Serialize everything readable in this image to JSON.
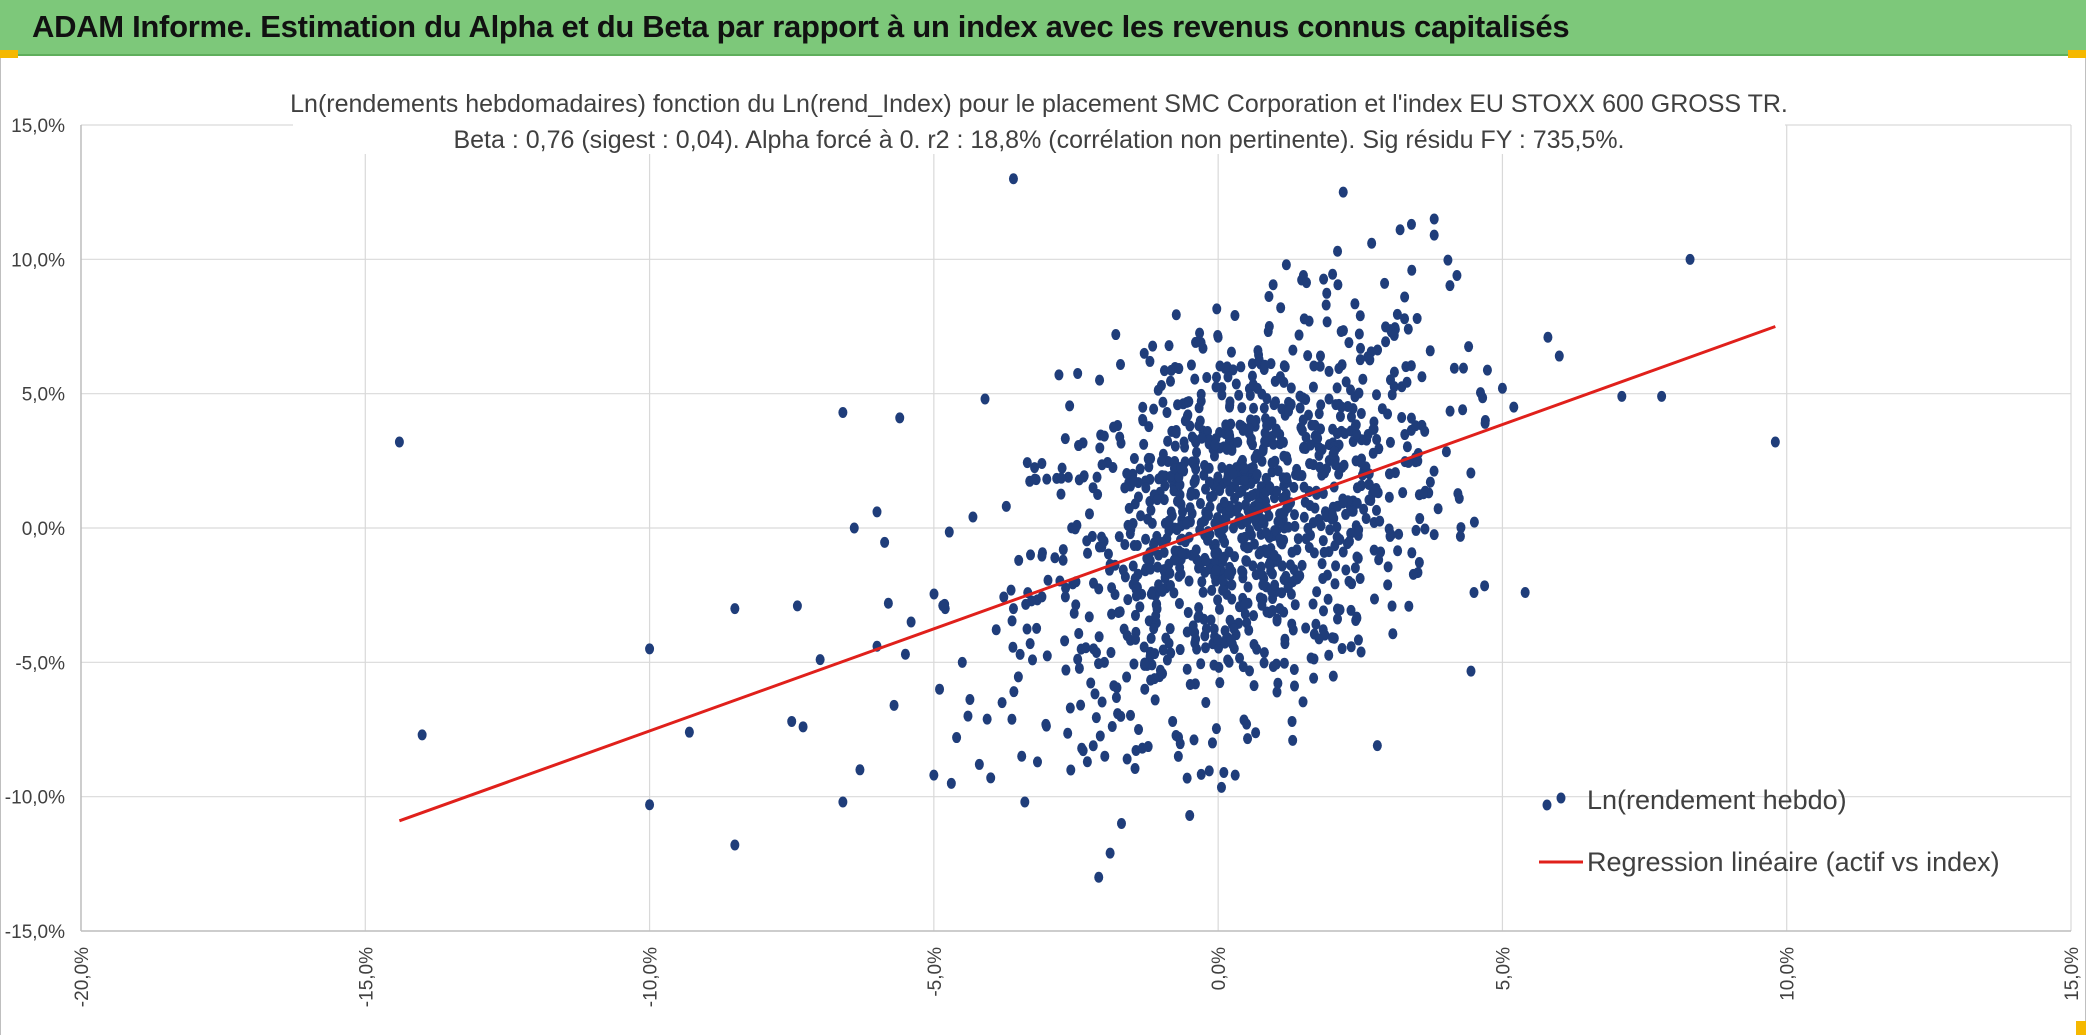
{
  "header": {
    "title": "ADAM Informe. Estimation du Alpha et du Beta par rapport à un index avec les revenus connus capitalisés"
  },
  "colors": {
    "banner": "#7dc87a",
    "points": "#1f3d7a",
    "regression": "#e0201b",
    "grid": "#d9d9d9",
    "accent_corner": "#f5b800"
  },
  "chart_data": {
    "type": "scatter",
    "title_line1": "Ln(rendements hebdomadaires) fonction du Ln(rend_Index) pour le placement SMC Corporation et l'index EU STOXX 600 GROSS TR.",
    "title_line2": "Beta : 0,76 (sigest : 0,04). Alpha forcé à 0. r2 : 18,8% (corrélation non pertinente). Sig résidu FY : 735,5%.",
    "xlim": [
      -0.2,
      0.15
    ],
    "ylim": [
      -0.15,
      0.15
    ],
    "x_ticks": [
      -0.2,
      -0.15,
      -0.1,
      -0.05,
      0.0,
      0.05,
      0.1,
      0.15
    ],
    "x_tick_labels": [
      "-20,0%",
      "-15,0%",
      "-10,0%",
      "-5,0%",
      "0,0%",
      "5,0%",
      "10,0%",
      "15,0%"
    ],
    "y_ticks": [
      0.15,
      0.1,
      0.05,
      0.0,
      -0.05,
      -0.1,
      -0.15
    ],
    "y_tick_labels": [
      "15,0%",
      "10,0%",
      "5,0%",
      "0,0%",
      "-5,0%",
      "-10,0%",
      "-15,0%"
    ],
    "grid": true,
    "legend_position": "bottom-right",
    "series": [
      {
        "name": "Ln(rendement hebdo)",
        "kind": "scatter",
        "points": [
          [
            -0.144,
            0.032
          ],
          [
            -0.14,
            -0.077
          ],
          [
            -0.1,
            -0.045
          ],
          [
            -0.1,
            -0.103
          ],
          [
            -0.093,
            -0.076
          ],
          [
            -0.085,
            -0.03
          ],
          [
            -0.085,
            -0.118
          ],
          [
            -0.074,
            -0.029
          ],
          [
            -0.075,
            -0.072
          ],
          [
            -0.073,
            -0.074
          ],
          [
            -0.07,
            -0.049
          ],
          [
            -0.066,
            0.043
          ],
          [
            -0.066,
            -0.102
          ],
          [
            -0.064,
            0.0
          ],
          [
            -0.063,
            -0.09
          ],
          [
            -0.06,
            0.006
          ],
          [
            -0.06,
            -0.044
          ],
          [
            -0.058,
            -0.028
          ],
          [
            -0.057,
            -0.066
          ],
          [
            -0.056,
            0.041
          ],
          [
            -0.055,
            -0.047
          ],
          [
            -0.054,
            -0.035
          ],
          [
            -0.05,
            -0.092
          ],
          [
            -0.049,
            -0.06
          ],
          [
            -0.048,
            -0.03
          ],
          [
            -0.046,
            -0.078
          ],
          [
            -0.045,
            -0.05
          ],
          [
            -0.044,
            -0.07
          ],
          [
            -0.042,
            -0.088
          ],
          [
            -0.041,
            0.048
          ],
          [
            -0.04,
            -0.093
          ],
          [
            -0.038,
            -0.065
          ],
          [
            -0.036,
            -0.03
          ],
          [
            -0.034,
            -0.102
          ],
          [
            -0.033,
            -0.01
          ],
          [
            -0.032,
            0.018
          ],
          [
            -0.031,
            0.024
          ],
          [
            -0.028,
            0.057
          ],
          [
            -0.027,
            -0.042
          ],
          [
            -0.026,
            -0.067
          ],
          [
            -0.025,
            -0.02
          ],
          [
            -0.024,
            -0.082
          ],
          [
            -0.023,
            -0.087
          ],
          [
            -0.022,
            0.015
          ],
          [
            -0.021,
            -0.13
          ],
          [
            -0.02,
            -0.05
          ],
          [
            -0.019,
            -0.121
          ],
          [
            -0.018,
            0.072
          ],
          [
            -0.017,
            -0.11
          ],
          [
            -0.016,
            -0.04
          ],
          [
            -0.015,
            0.02
          ],
          [
            -0.014,
            -0.075
          ],
          [
            -0.013,
            0.065
          ],
          [
            -0.012,
            0.062
          ],
          [
            -0.011,
            -0.025
          ],
          [
            -0.009,
            0.043
          ],
          [
            -0.008,
            -0.072
          ],
          [
            -0.007,
            -0.085
          ],
          [
            -0.006,
            0.032
          ],
          [
            -0.005,
            -0.107
          ],
          [
            -0.004,
            -0.058
          ],
          [
            -0.003,
            0.069
          ],
          [
            -0.002,
            0.056
          ],
          [
            -0.001,
            -0.08
          ],
          [
            0.0,
            0.071
          ],
          [
            0.001,
            -0.091
          ],
          [
            0.002,
            0.045
          ],
          [
            0.003,
            -0.092
          ],
          [
            0.004,
            0.06
          ],
          [
            0.005,
            -0.073
          ],
          [
            0.007,
            0.066
          ],
          [
            0.009,
            0.075
          ],
          [
            0.011,
            0.082
          ],
          [
            0.012,
            0.098
          ],
          [
            0.013,
            -0.072
          ],
          [
            0.015,
            0.094
          ],
          [
            0.016,
            0.077
          ],
          [
            0.018,
            0.064
          ],
          [
            0.019,
            0.083
          ],
          [
            0.021,
            0.103
          ],
          [
            0.022,
            0.125
          ],
          [
            0.023,
            0.069
          ],
          [
            0.025,
            0.079
          ],
          [
            0.027,
            0.106
          ],
          [
            0.028,
            -0.081
          ],
          [
            0.031,
            0.058
          ],
          [
            0.032,
            0.111
          ],
          [
            0.034,
            0.113
          ],
          [
            0.035,
            0.078
          ],
          [
            0.038,
            0.115
          ],
          [
            0.038,
            0.109
          ],
          [
            0.042,
            0.094
          ],
          [
            0.043,
            0.044
          ],
          [
            0.045,
            -0.024
          ],
          [
            0.047,
            0.04
          ],
          [
            0.05,
            0.052
          ],
          [
            0.052,
            0.045
          ],
          [
            0.054,
            -0.024
          ],
          [
            0.058,
            0.071
          ],
          [
            0.06,
            0.064
          ],
          [
            0.071,
            0.049
          ],
          [
            0.078,
            0.049
          ],
          [
            0.083,
            0.1
          ],
          [
            0.098,
            0.032
          ],
          [
            0.004,
            0.024
          ],
          [
            -0.036,
            0.13
          ]
        ]
      },
      {
        "name": "Regression linéaire (actif vs index)",
        "kind": "line",
        "points": [
          [
            -0.144,
            -0.109
          ],
          [
            0.098,
            0.075
          ]
        ]
      }
    ]
  }
}
